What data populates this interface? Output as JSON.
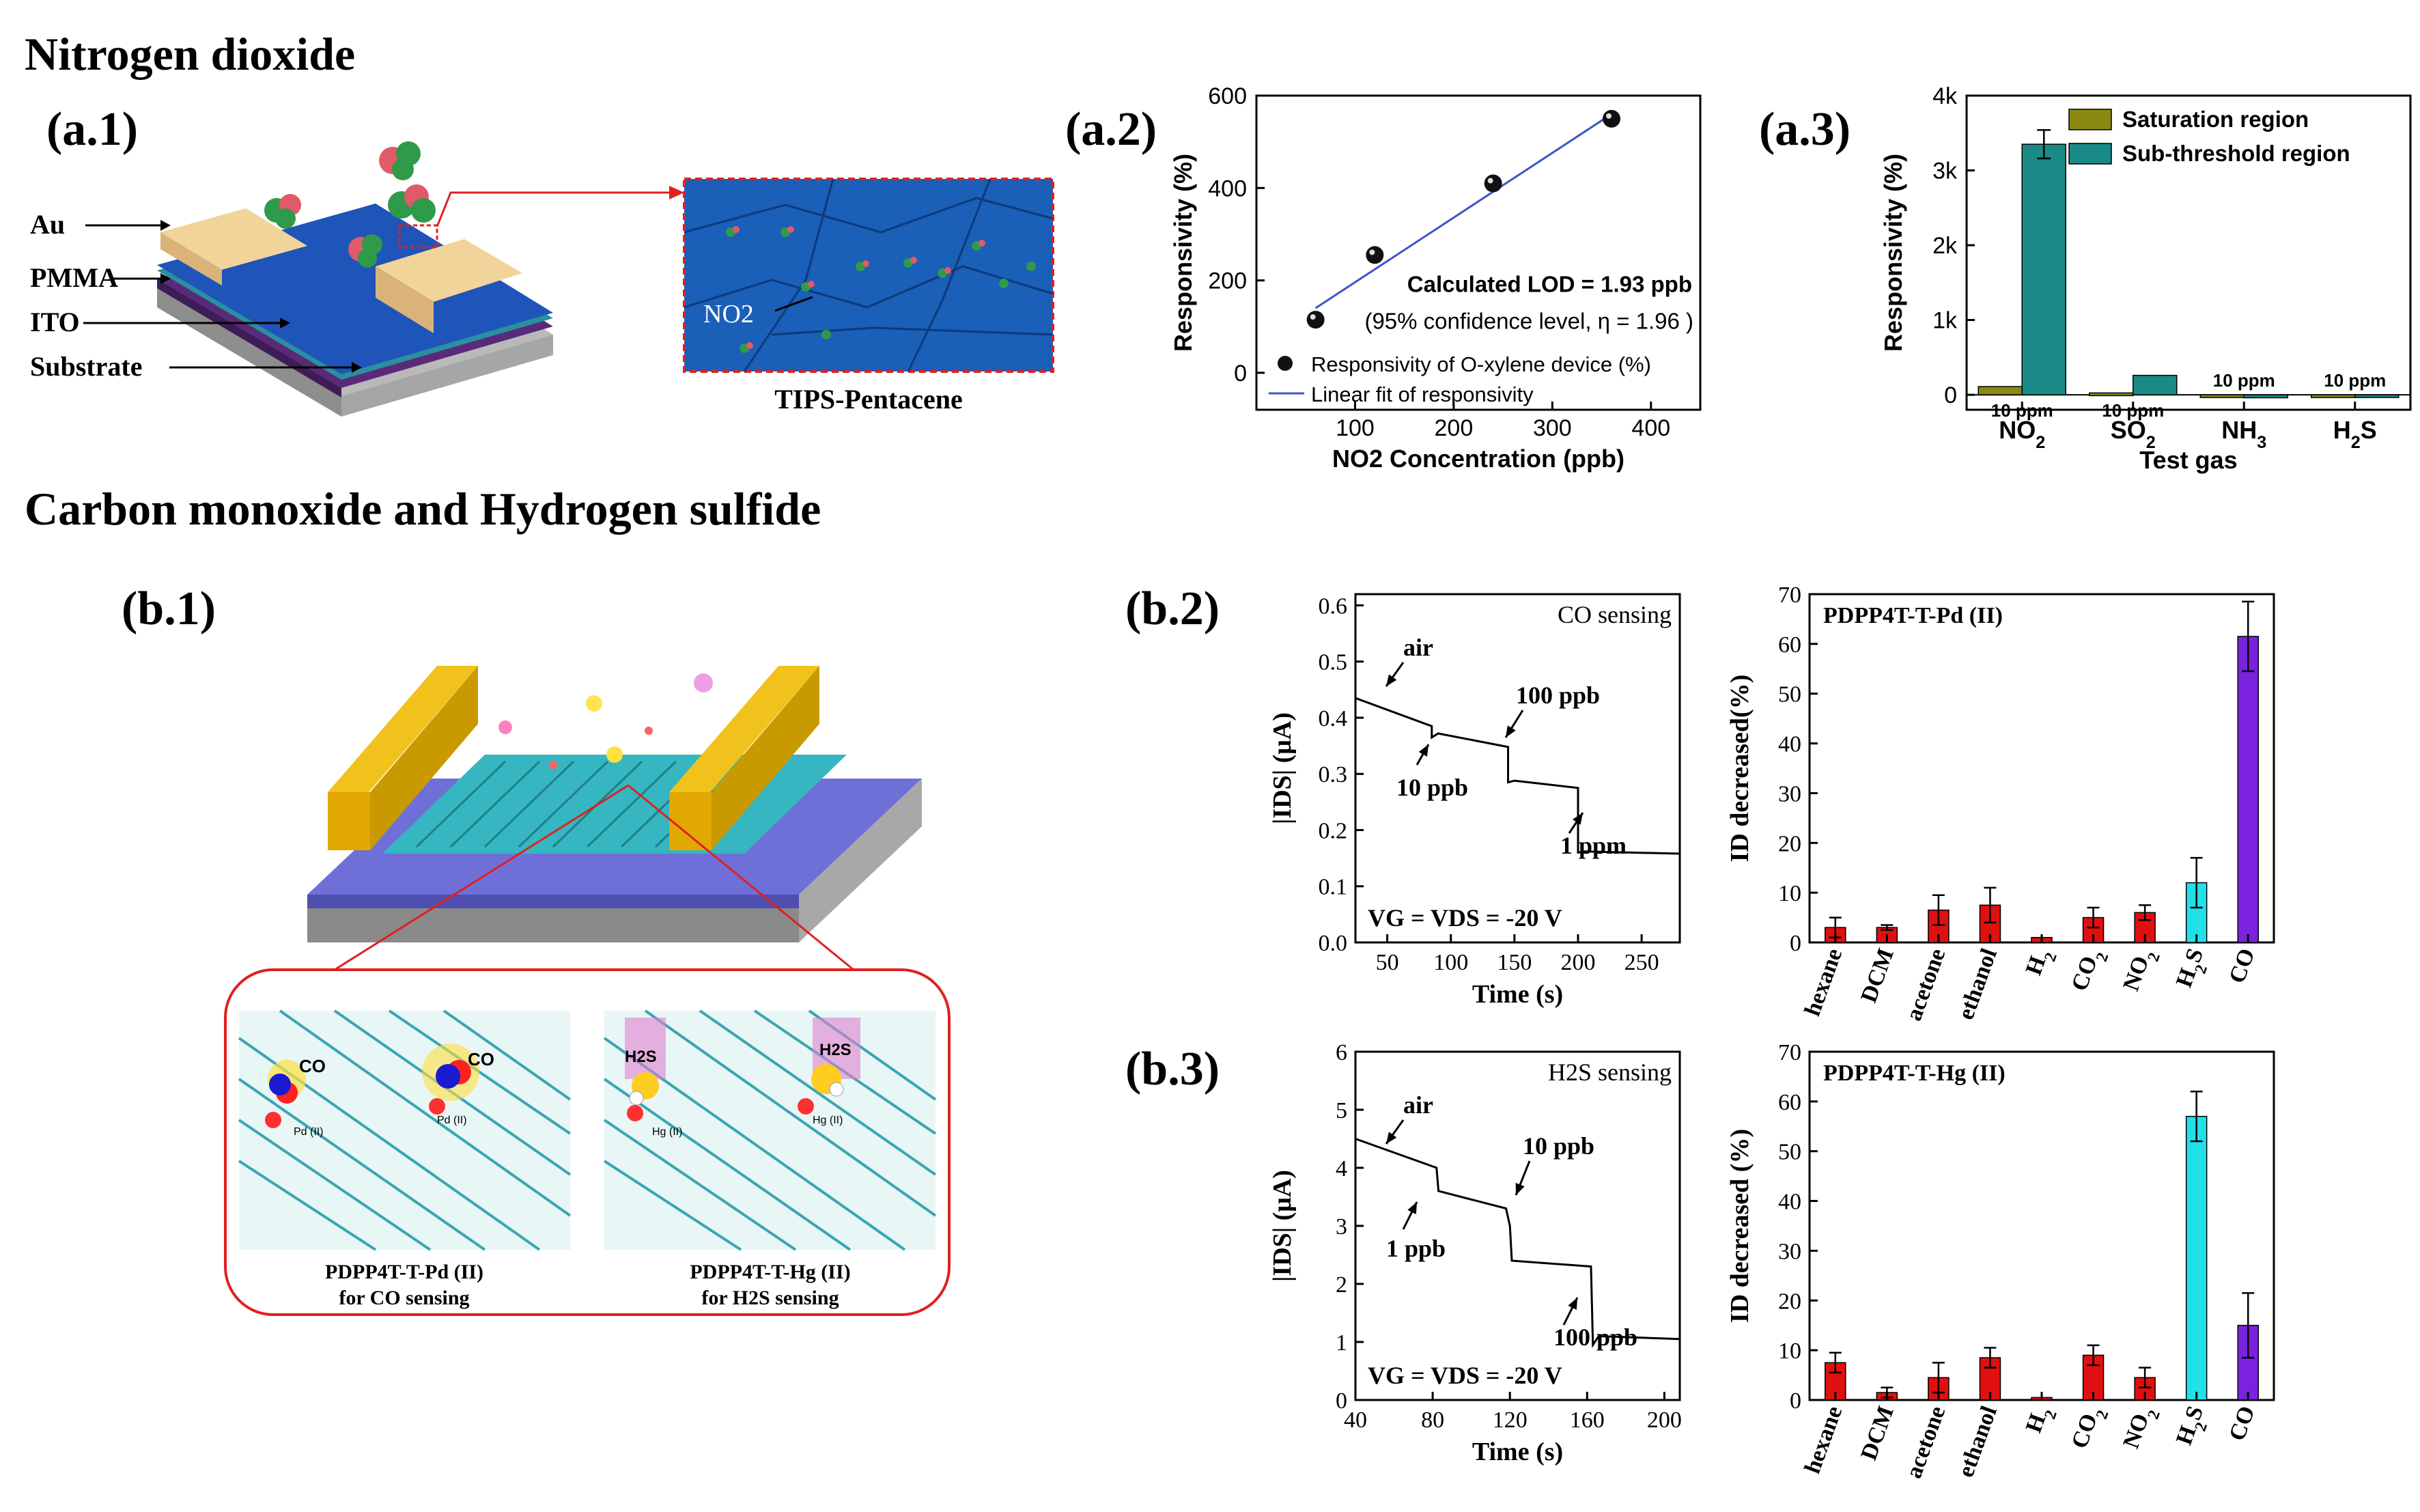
{
  "section_titles": {
    "nitrogen": "Nitrogen dioxide",
    "co_h2s": "Carbon monoxide and Hydrogen sulfide"
  },
  "panel_labels": {
    "a1": "(a.1)",
    "a2": "(a.2)",
    "a3": "(a.3)",
    "b1": "(b.1)",
    "b2": "(b.2)",
    "b3": "(b.3)"
  },
  "device_a1": {
    "layers": [
      "Au",
      "PMMA",
      "ITO",
      "Substrate"
    ],
    "inset_label": "NO2",
    "caption": "TIPS-Pentacene"
  },
  "device_b1": {
    "left_caption_1": "PDPP4T-T-Pd (II)",
    "left_caption_2": "for CO sensing",
    "right_caption_1": "PDPP4T-T-Hg (II)",
    "right_caption_2": "for H2S sensing",
    "left_molecule": "CO",
    "left_metal": "Pd (II)",
    "right_molecule": "H2S",
    "right_metal": "Hg (II)"
  },
  "colors": {
    "device_blue": "#1f55b8",
    "gold": "#f1c21b",
    "teal_bar": "#1a8a86",
    "olive_bar": "#8a8a12",
    "red_bar": "#e01010",
    "cyan_bar": "#22e0e8",
    "purple_bar": "#7a22dd",
    "fit_line": "#3c55c8"
  },
  "chart_data": [
    {
      "id": "a2",
      "type": "scatter",
      "xlabel": "NO2 Concentration (ppb)",
      "ylabel": "Responsivity (%)",
      "xlim": [
        0,
        450
      ],
      "ylim": [
        -80,
        600
      ],
      "xticks": [
        100,
        200,
        300,
        400
      ],
      "yticks": [
        0,
        200,
        400,
        600
      ],
      "series": [
        {
          "name": "Responsivity of O-xylene device (%)",
          "x": [
            60,
            120,
            240,
            360
          ],
          "y": [
            115,
            255,
            410,
            550
          ]
        },
        {
          "name": "Linear fit of responsivity",
          "x": [
            60,
            360
          ],
          "y": [
            140,
            560
          ]
        }
      ],
      "annotations": [
        "Calculated LOD = 1.93 ppb",
        "(95% confidence level, η = 1.96 )"
      ],
      "legend": "bottom"
    },
    {
      "id": "a3",
      "type": "bar",
      "xlabel": "Test gas",
      "ylabel": "Responsivity (%)",
      "categories": [
        "NO2",
        "SO2",
        "NH3",
        "H2S"
      ],
      "ylim": [
        -200,
        4000
      ],
      "yticks": [
        0,
        1000,
        2000,
        3000,
        4000
      ],
      "ytick_labels": [
        "0",
        "1k",
        "2k",
        "3k",
        "4k"
      ],
      "series": [
        {
          "name": "Saturation region",
          "values": [
            110,
            25,
            -10,
            -15
          ]
        },
        {
          "name": "Sub-threshold region",
          "values": [
            3350,
            260,
            -40,
            -30
          ],
          "errors": [
            190,
            0,
            0,
            0
          ]
        }
      ],
      "bar_labels": [
        "10 ppm",
        "10 ppm",
        "10 ppm",
        "10 ppm"
      ],
      "legend": "top-right"
    },
    {
      "id": "b2",
      "type": "line",
      "title": "CO sensing",
      "xlabel": "Time (s)",
      "ylabel": "|IDS| (μA)",
      "xlim": [
        25,
        280
      ],
      "ylim": [
        0,
        0.62
      ],
      "xticks": [
        50,
        100,
        150,
        200,
        250
      ],
      "yticks": [
        0.0,
        0.1,
        0.2,
        0.3,
        0.4,
        0.5,
        0.6
      ],
      "x": [
        25,
        85,
        85,
        90,
        145,
        145,
        150,
        200,
        200,
        205,
        280
      ],
      "y": [
        0.435,
        0.385,
        0.365,
        0.372,
        0.348,
        0.285,
        0.288,
        0.275,
        0.16,
        0.162,
        0.158
      ],
      "annotations": [
        "air",
        "10 ppb",
        "100 ppb",
        "1 ppm",
        "VG = VDS = -20 V"
      ]
    },
    {
      "id": "b2r",
      "type": "bar",
      "title": "PDPP4T-T-Pd (II)",
      "ylabel": "ID decreased(%)",
      "categories": [
        "hexane",
        "DCM",
        "acetone",
        "ethanol",
        "H2",
        "CO2",
        "NO2",
        "H2S",
        "CO"
      ],
      "values": [
        3,
        3,
        6.5,
        7.5,
        1,
        5,
        6,
        12,
        61.5
      ],
      "errors": [
        2,
        0.5,
        3,
        3.5,
        0,
        2,
        1.5,
        5,
        7
      ],
      "ylim": [
        0,
        70
      ],
      "yticks": [
        0,
        10,
        20,
        30,
        40,
        50,
        60,
        70
      ]
    },
    {
      "id": "b3",
      "type": "line",
      "title": "H2S sensing",
      "xlabel": "Time (s)",
      "ylabel": "|IDS| (μA)",
      "xlim": [
        40,
        208
      ],
      "ylim": [
        0,
        6
      ],
      "xticks": [
        40,
        80,
        120,
        160,
        200
      ],
      "yticks": [
        0,
        1,
        2,
        3,
        4,
        5,
        6
      ],
      "x": [
        40,
        82,
        83,
        118,
        120,
        121,
        162,
        163,
        166,
        208
      ],
      "y": [
        4.5,
        4.0,
        3.6,
        3.3,
        3.0,
        2.4,
        2.3,
        0.95,
        1.1,
        1.05
      ],
      "annotations": [
        "air",
        "1 ppb",
        "10 ppb",
        "100 ppb",
        "VG = VDS = -20 V"
      ]
    },
    {
      "id": "b3r",
      "type": "bar",
      "title": "PDPP4T-T-Hg (II)",
      "ylabel": "ID decreased (%)",
      "categories": [
        "hexane",
        "DCM",
        "acetone",
        "ethanol",
        "H2",
        "CO2",
        "NO2",
        "H2S",
        "CO"
      ],
      "values": [
        7.5,
        1.5,
        4.5,
        8.5,
        0.5,
        9,
        4.5,
        57,
        15
      ],
      "errors": [
        2,
        1,
        3,
        2,
        0,
        2,
        2,
        5,
        6.5
      ],
      "ylim": [
        0,
        70
      ],
      "yticks": [
        0,
        10,
        20,
        30,
        40,
        50,
        60,
        70
      ]
    }
  ]
}
